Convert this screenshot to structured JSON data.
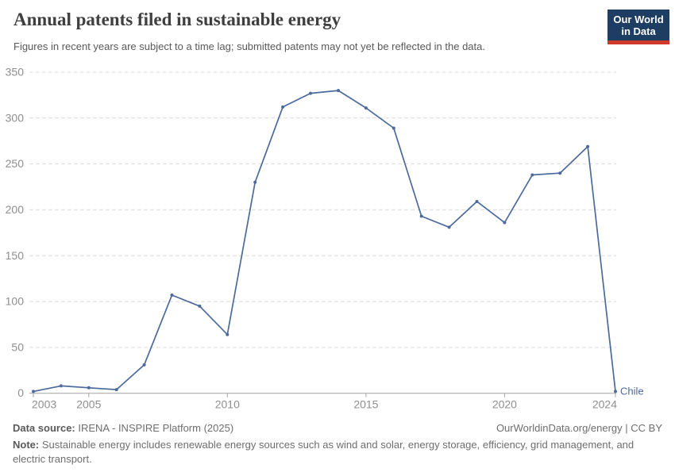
{
  "header": {
    "title": "Annual patents filed in sustainable energy",
    "subtitle": "Figures in recent years are subject to a time lag; submitted patents may not yet be reflected in the data.",
    "logo_line1": "Our World",
    "logo_line2": "in Data"
  },
  "chart_data": {
    "type": "line",
    "title": "Annual patents filed in sustainable energy",
    "x": [
      2003,
      2004,
      2005,
      2006,
      2007,
      2008,
      2009,
      2010,
      2011,
      2012,
      2013,
      2014,
      2015,
      2016,
      2017,
      2018,
      2019,
      2020,
      2021,
      2022,
      2023,
      2024
    ],
    "series": [
      {
        "name": "Chile",
        "color": "#4C6A9C",
        "values": [
          2,
          8,
          6,
          4,
          31,
          107,
          95,
          64,
          230,
          312,
          327,
          330,
          311,
          289,
          193,
          181,
          209,
          186,
          238,
          240,
          269,
          2
        ]
      }
    ],
    "xlim": [
      2003,
      2024
    ],
    "ylim": [
      0,
      350
    ],
    "x_ticks": [
      2003,
      2005,
      2010,
      2015,
      2020,
      2024
    ],
    "y_ticks": [
      0,
      50,
      100,
      150,
      200,
      250,
      300,
      350
    ],
    "grid": "horizontal-dashed",
    "legend_position": "end-of-line-label",
    "end_label": "Chile"
  },
  "footer": {
    "datasource_label": "Data source:",
    "datasource_value": "IRENA - INSPIRE Platform (2025)",
    "license": "OurWorldinData.org/energy | CC BY",
    "note_label": "Note:",
    "note_value": "Sustainable energy includes renewable energy sources such as wind and solar, energy storage, efficiency, grid management, and electric transport."
  },
  "colors": {
    "series_blue": "#4C6A9C",
    "logo_navy": "#1d3d63",
    "logo_red": "#cf3a2c",
    "gridline": "#dcdcdc",
    "axis": "#a3a3a3",
    "tick_label": "#8f8f8f"
  }
}
